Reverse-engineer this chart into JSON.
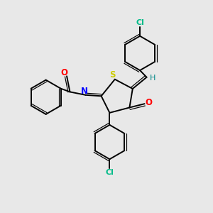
{
  "background_color": "#e8e8e8",
  "bond_color": "#000000",
  "atom_colors": {
    "N": "#0000ff",
    "O": "#ff0000",
    "S": "#cccc00",
    "Cl": "#00bb88",
    "H": "#008888",
    "C": "#000000"
  },
  "figsize": [
    3.0,
    3.0
  ],
  "dpi": 100,
  "xlim": [
    0,
    10
  ],
  "ylim": [
    0,
    10
  ]
}
